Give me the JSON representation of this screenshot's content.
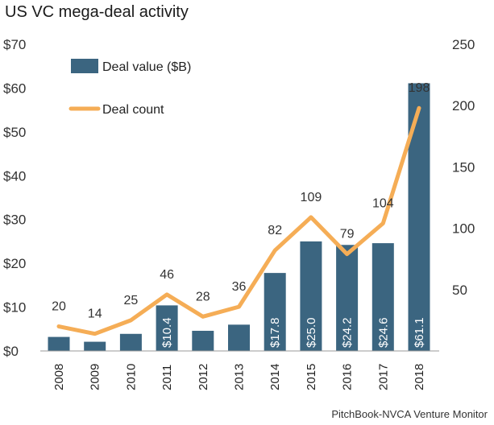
{
  "title": "US VC mega-deal activity",
  "source": "PitchBook-NVCA Venture Monitor",
  "colors": {
    "bar": "#3b6580",
    "line": "#f5ad56",
    "axis": "#999999"
  },
  "chart_data": {
    "type": "bar",
    "title": "US VC mega-deal activity",
    "categories": [
      "2008",
      "2009",
      "2010",
      "2011",
      "2012",
      "2013",
      "2014",
      "2015",
      "2016",
      "2017",
      "2018"
    ],
    "series": [
      {
        "name": "Deal value ($B)",
        "type": "bar",
        "axis": "left",
        "values": [
          3.2,
          2.1,
          3.9,
          10.4,
          4.6,
          6.0,
          17.8,
          25.0,
          24.2,
          24.6,
          61.1
        ],
        "labels": [
          "",
          "",
          "",
          "$10.4",
          "",
          "",
          "$17.8",
          "$25.0",
          "$24.2",
          "$24.6",
          "$61.1"
        ]
      },
      {
        "name": "Deal count",
        "type": "line",
        "axis": "right",
        "values": [
          20,
          14,
          25,
          46,
          28,
          36,
          82,
          109,
          79,
          104,
          198
        ],
        "labels": [
          "20",
          "14",
          "25",
          "46",
          "28",
          "36",
          "82",
          "109",
          "79",
          "104",
          "198"
        ]
      }
    ],
    "y_left": {
      "ylim": [
        0,
        70
      ],
      "ticks": [
        "$0",
        "$10",
        "$20",
        "$30",
        "$40",
        "$50",
        "$60",
        "$70"
      ],
      "tick_values": [
        0,
        10,
        20,
        30,
        40,
        50,
        60,
        70
      ]
    },
    "y_right": {
      "ylim": [
        0,
        250
      ],
      "ticks": [
        "50",
        "100",
        "150",
        "200",
        "250"
      ],
      "tick_values": [
        50,
        100,
        150,
        200,
        250
      ]
    },
    "grid": false,
    "legend": "top-left"
  }
}
